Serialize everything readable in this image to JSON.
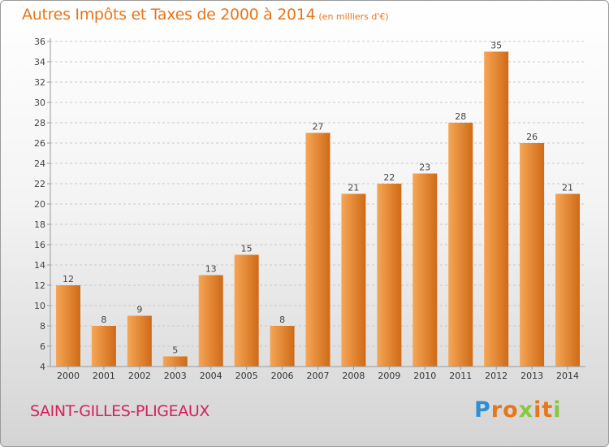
{
  "header": {
    "title": "Autres Impôts et Taxes de 2000 à 2014",
    "subtitle": "(en milliers d'€)"
  },
  "footer": {
    "commune": "SAINT-GILLES-PLIGEAUX",
    "logo_text": "Proxiti"
  },
  "colors": {
    "bar_light": "#f6a656",
    "bar_dark": "#cf6a16",
    "title": "#e8761a",
    "commune": "#d6205a",
    "grid": "#c8c8c8",
    "axis": "#9a9a9a"
  },
  "chart_data": {
    "type": "bar",
    "title": "Autres Impôts et Taxes de 2000 à 2014",
    "subtitle": "(en milliers d'€)",
    "categories": [
      "2000",
      "2001",
      "2002",
      "2003",
      "2004",
      "2005",
      "2006",
      "2007",
      "2008",
      "2009",
      "2010",
      "2011",
      "2012",
      "2013",
      "2014"
    ],
    "values": [
      12,
      8,
      9,
      5,
      13,
      15,
      8,
      27,
      21,
      22,
      23,
      28,
      35,
      26,
      21
    ],
    "ylim": [
      4,
      36
    ],
    "yticks": [
      4,
      6,
      8,
      10,
      12,
      14,
      16,
      18,
      20,
      22,
      24,
      26,
      28,
      30,
      32,
      34,
      36
    ],
    "grid": true,
    "data_labels": true
  }
}
